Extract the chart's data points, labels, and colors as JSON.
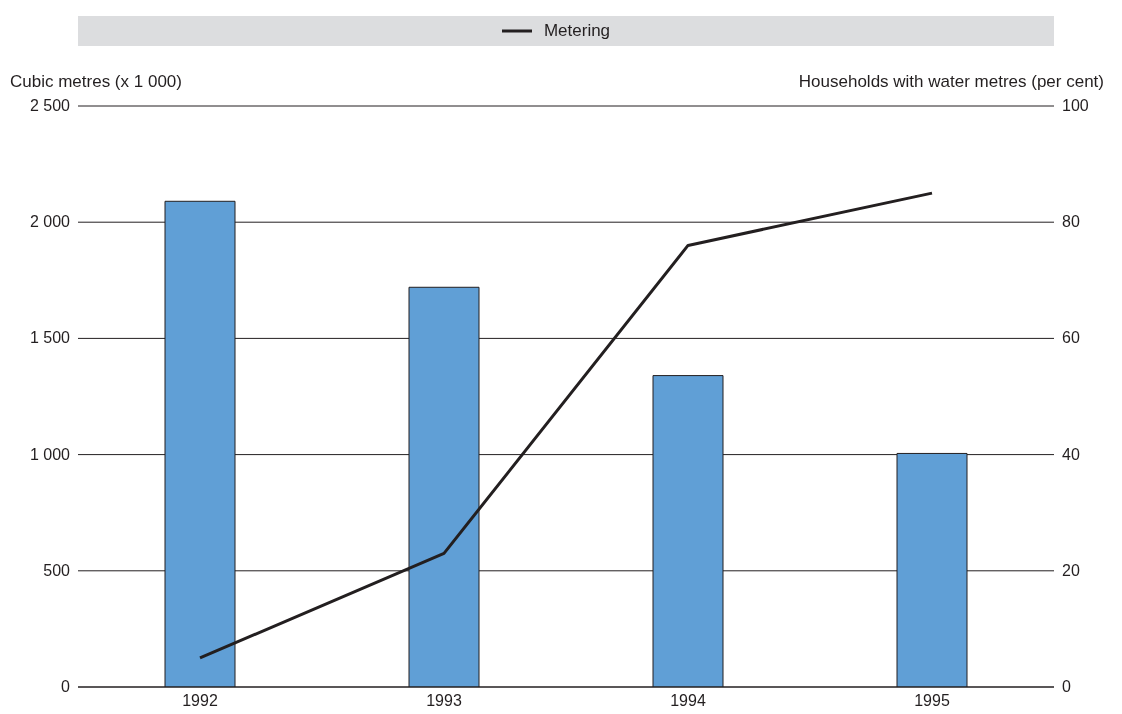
{
  "chart_data": {
    "type": "bar",
    "categories": [
      "1992",
      "1993",
      "1994",
      "1995"
    ],
    "series": [
      {
        "color": "#609fd6",
        "values": [
          2090,
          1720,
          1340,
          1005
        ]
      },
      {
        "type": "line",
        "name": "Metering",
        "color": "#231f20",
        "axis": "y2",
        "values": [
          5,
          23,
          76,
          85
        ]
      }
    ],
    "ylabel": "Cubic metres (x 1 000)",
    "y2label": "Households with water metres (per cent)",
    "ylim": [
      0,
      2500
    ],
    "yticks": [
      0,
      500,
      {
        "value": 1000,
        "label": "1 000"
      },
      {
        "value": 1500,
        "label": "1 500"
      },
      {
        "value": 2000,
        "label": "2 000"
      },
      {
        "value": 2500,
        "label": "2 500"
      }
    ],
    "y2lim": [
      0,
      100
    ],
    "y2ticks": [
      0,
      20,
      40,
      60,
      80,
      100
    ],
    "grid": "y",
    "legend": "top",
    "marker": "none",
    "line_style": "solid"
  }
}
